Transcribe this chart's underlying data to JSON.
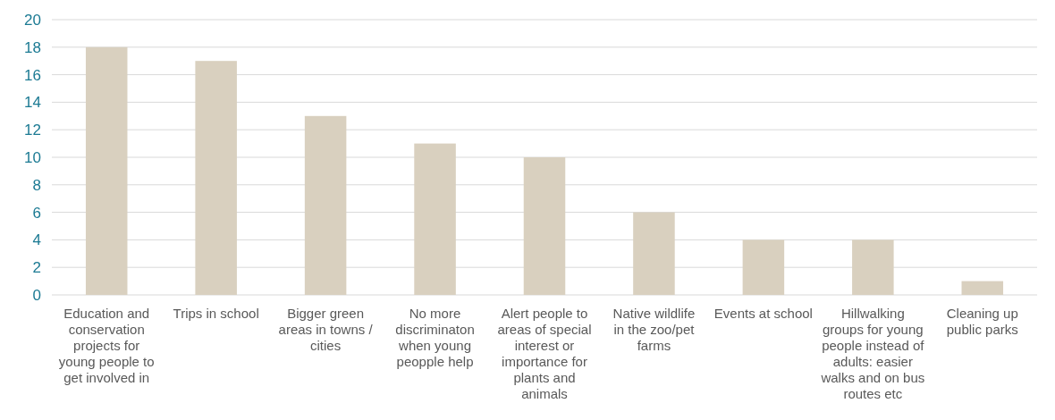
{
  "chart_data": {
    "type": "bar",
    "categories": [
      "Education and conservation projects for young people to get involved in",
      "Trips in school",
      "Bigger green areas in towns / cities",
      "No more discriminaton when young peopple help",
      "Alert people to areas of special interest or importance for plants and animals",
      "Native wildlife in the zoo/pet farms",
      "Events at school",
      "Hillwalking groups for young people instead of adults: easier walks and on bus routes etc",
      "Cleaning up public parks"
    ],
    "values": [
      18,
      17,
      13,
      11,
      10,
      6,
      4,
      4,
      1
    ],
    "color": "#d9d0bf",
    "ylim": [
      0,
      20
    ],
    "yticks": [
      0,
      2,
      4,
      6,
      8,
      10,
      12,
      14,
      16,
      18,
      20
    ],
    "grid": "y"
  }
}
